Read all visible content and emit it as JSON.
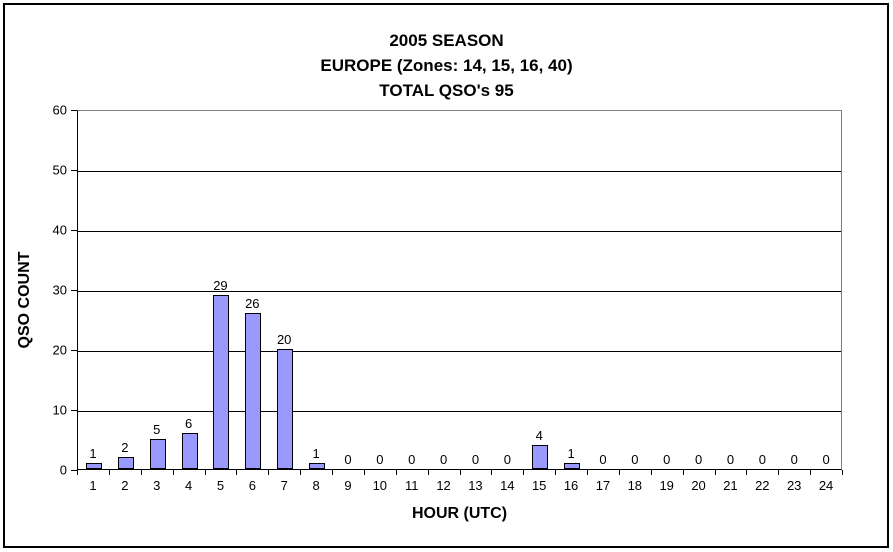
{
  "chart_data": {
    "type": "bar",
    "title_lines": [
      "2005 SEASON",
      "EUROPE (Zones: 14, 15, 16, 40)",
      "TOTAL QSO's 95"
    ],
    "categories": [
      "1",
      "2",
      "3",
      "4",
      "5",
      "6",
      "7",
      "8",
      "9",
      "10",
      "11",
      "12",
      "13",
      "14",
      "15",
      "16",
      "17",
      "18",
      "19",
      "20",
      "21",
      "22",
      "23",
      "24"
    ],
    "values": [
      1,
      2,
      5,
      6,
      29,
      26,
      20,
      1,
      0,
      0,
      0,
      0,
      0,
      0,
      4,
      1,
      0,
      0,
      0,
      0,
      0,
      0,
      0,
      0
    ],
    "xlabel": "HOUR (UTC)",
    "ylabel": "QSO COUNT",
    "ylim": [
      0,
      60
    ],
    "yticks": [
      0,
      10,
      20,
      30,
      40,
      50,
      60
    ],
    "grid": true,
    "data_labels_shown": true,
    "legend": "none",
    "colors": {
      "bar_fill": "#9999FF",
      "bar_border": "#000000",
      "gridline": "#000000",
      "plot_frame": "#808080",
      "axis": "#000000",
      "text": "#000000",
      "background": "#FFFFFF"
    }
  }
}
